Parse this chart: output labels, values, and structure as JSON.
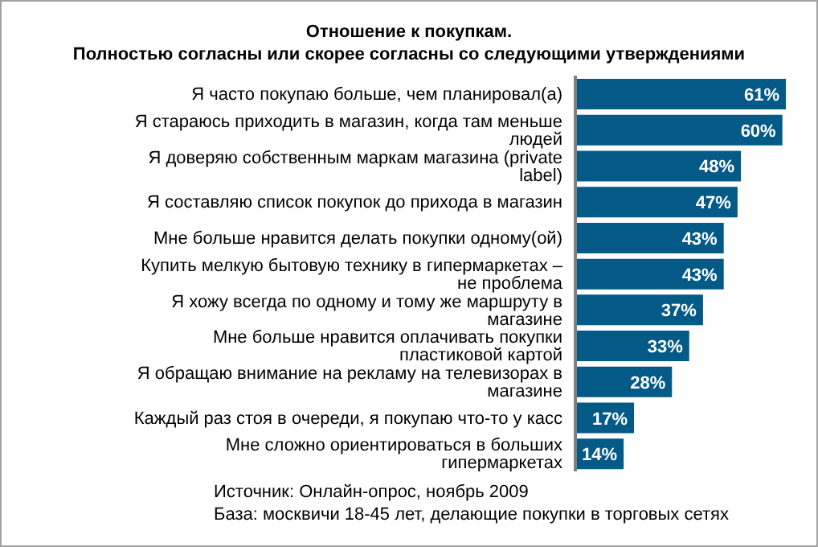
{
  "chart_data": {
    "type": "bar",
    "orientation": "horizontal",
    "title": "Отношение к покупкам.",
    "subtitle": "Полностью согласны или скорее согласны со следующими утверждениями",
    "categories": [
      "Я часто покупаю больше, чем планировал(а)",
      "Я стараюсь приходить в магазин, когда там меньше людей",
      "Я доверяю собственным маркам магазина (private label)",
      "Я составляю список покупок до прихода в магазин",
      "Мне больше нравится делать покупки одному(ой)",
      "Купить мелкую бытовую технику в гипермаркетах – не проблема",
      "Я хожу всегда по одному и тому же маршруту в магазине",
      "Мне больше нравится оплачивать покупки пластиковой картой",
      "Я обращаю внимание на рекламу на телевизорах в магазине",
      "Каждый раз стоя в очереди, я покупаю что-то у касс",
      "Мне сложно ориентироваться в больших гипермаркетах"
    ],
    "values": [
      61,
      60,
      48,
      47,
      43,
      43,
      37,
      33,
      28,
      17,
      14
    ],
    "value_labels": [
      "61%",
      "60%",
      "48%",
      "47%",
      "43%",
      "43%",
      "37%",
      "33%",
      "28%",
      "17%",
      "14%"
    ],
    "color": "#035a86",
    "annotations": [
      "Источник: Онлайн-опрос, ноябрь 2009",
      "База: москвичи 18-45 лет, делающие покупки в торговых сетях"
    ]
  }
}
